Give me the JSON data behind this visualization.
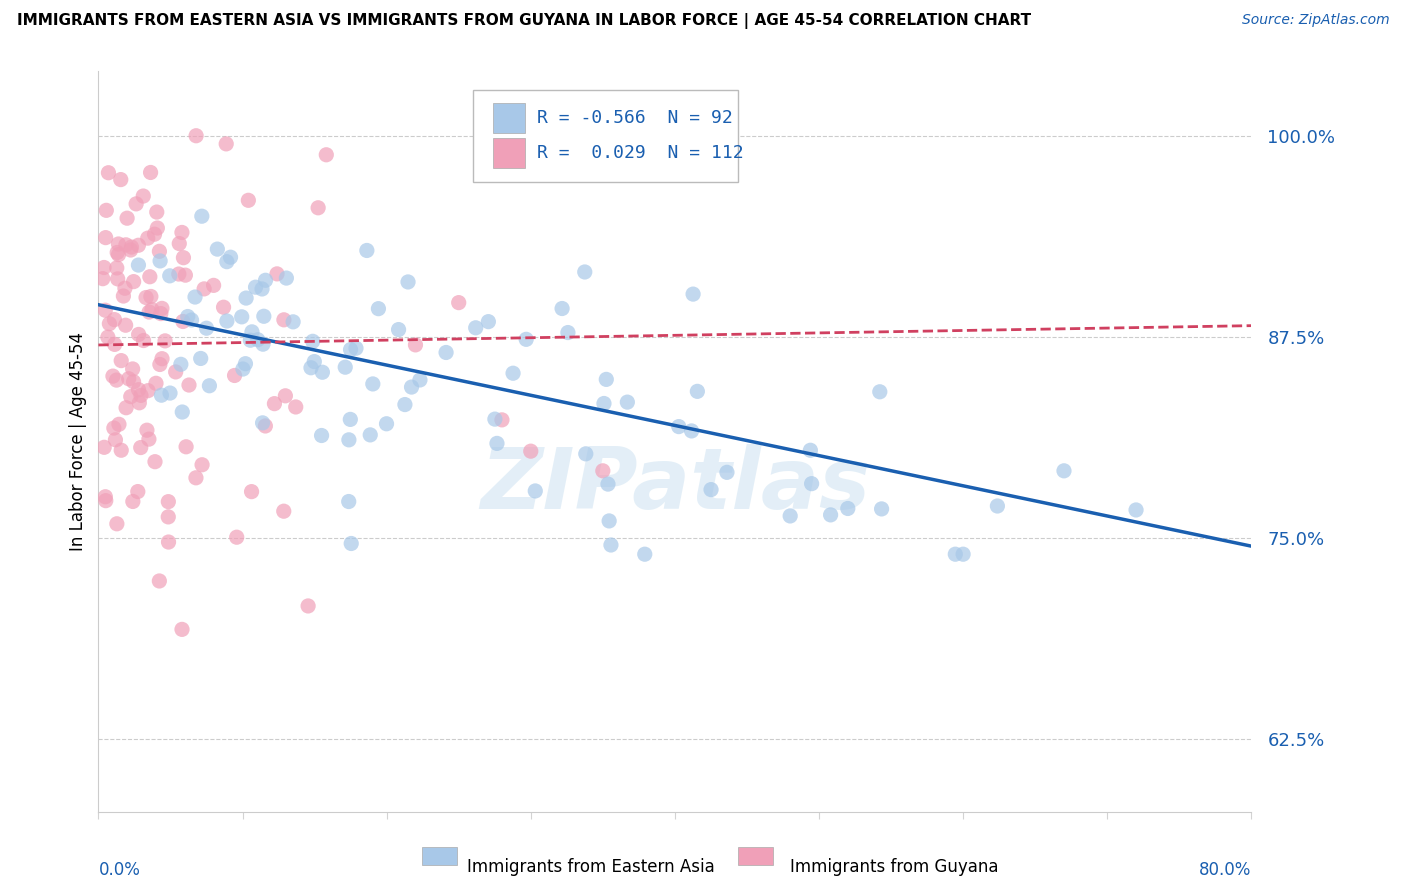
{
  "title": "IMMIGRANTS FROM EASTERN ASIA VS IMMIGRANTS FROM GUYANA IN LABOR FORCE | AGE 45-54 CORRELATION CHART",
  "source": "Source: ZipAtlas.com",
  "ylabel": "In Labor Force | Age 45-54",
  "legend_blue_r": "-0.566",
  "legend_blue_n": "92",
  "legend_pink_r": "0.029",
  "legend_pink_n": "112",
  "legend_label_blue": "Immigrants from Eastern Asia",
  "legend_label_pink": "Immigrants from Guyana",
  "xlim": [
    0.0,
    80.0
  ],
  "ylim": [
    58.0,
    104.0
  ],
  "yticks": [
    62.5,
    75.0,
    87.5,
    100.0
  ],
  "blue_color": "#a8c8e8",
  "pink_color": "#f0a0b8",
  "blue_line_color": "#1a5fb0",
  "pink_line_color": "#d04060",
  "watermark": "ZIPatlas",
  "blue_line_x0": 0.0,
  "blue_line_y0": 89.5,
  "blue_line_x1": 80.0,
  "blue_line_y1": 74.5,
  "pink_line_x0": 0.0,
  "pink_line_y0": 87.0,
  "pink_line_x1": 80.0,
  "pink_line_y1": 88.2
}
